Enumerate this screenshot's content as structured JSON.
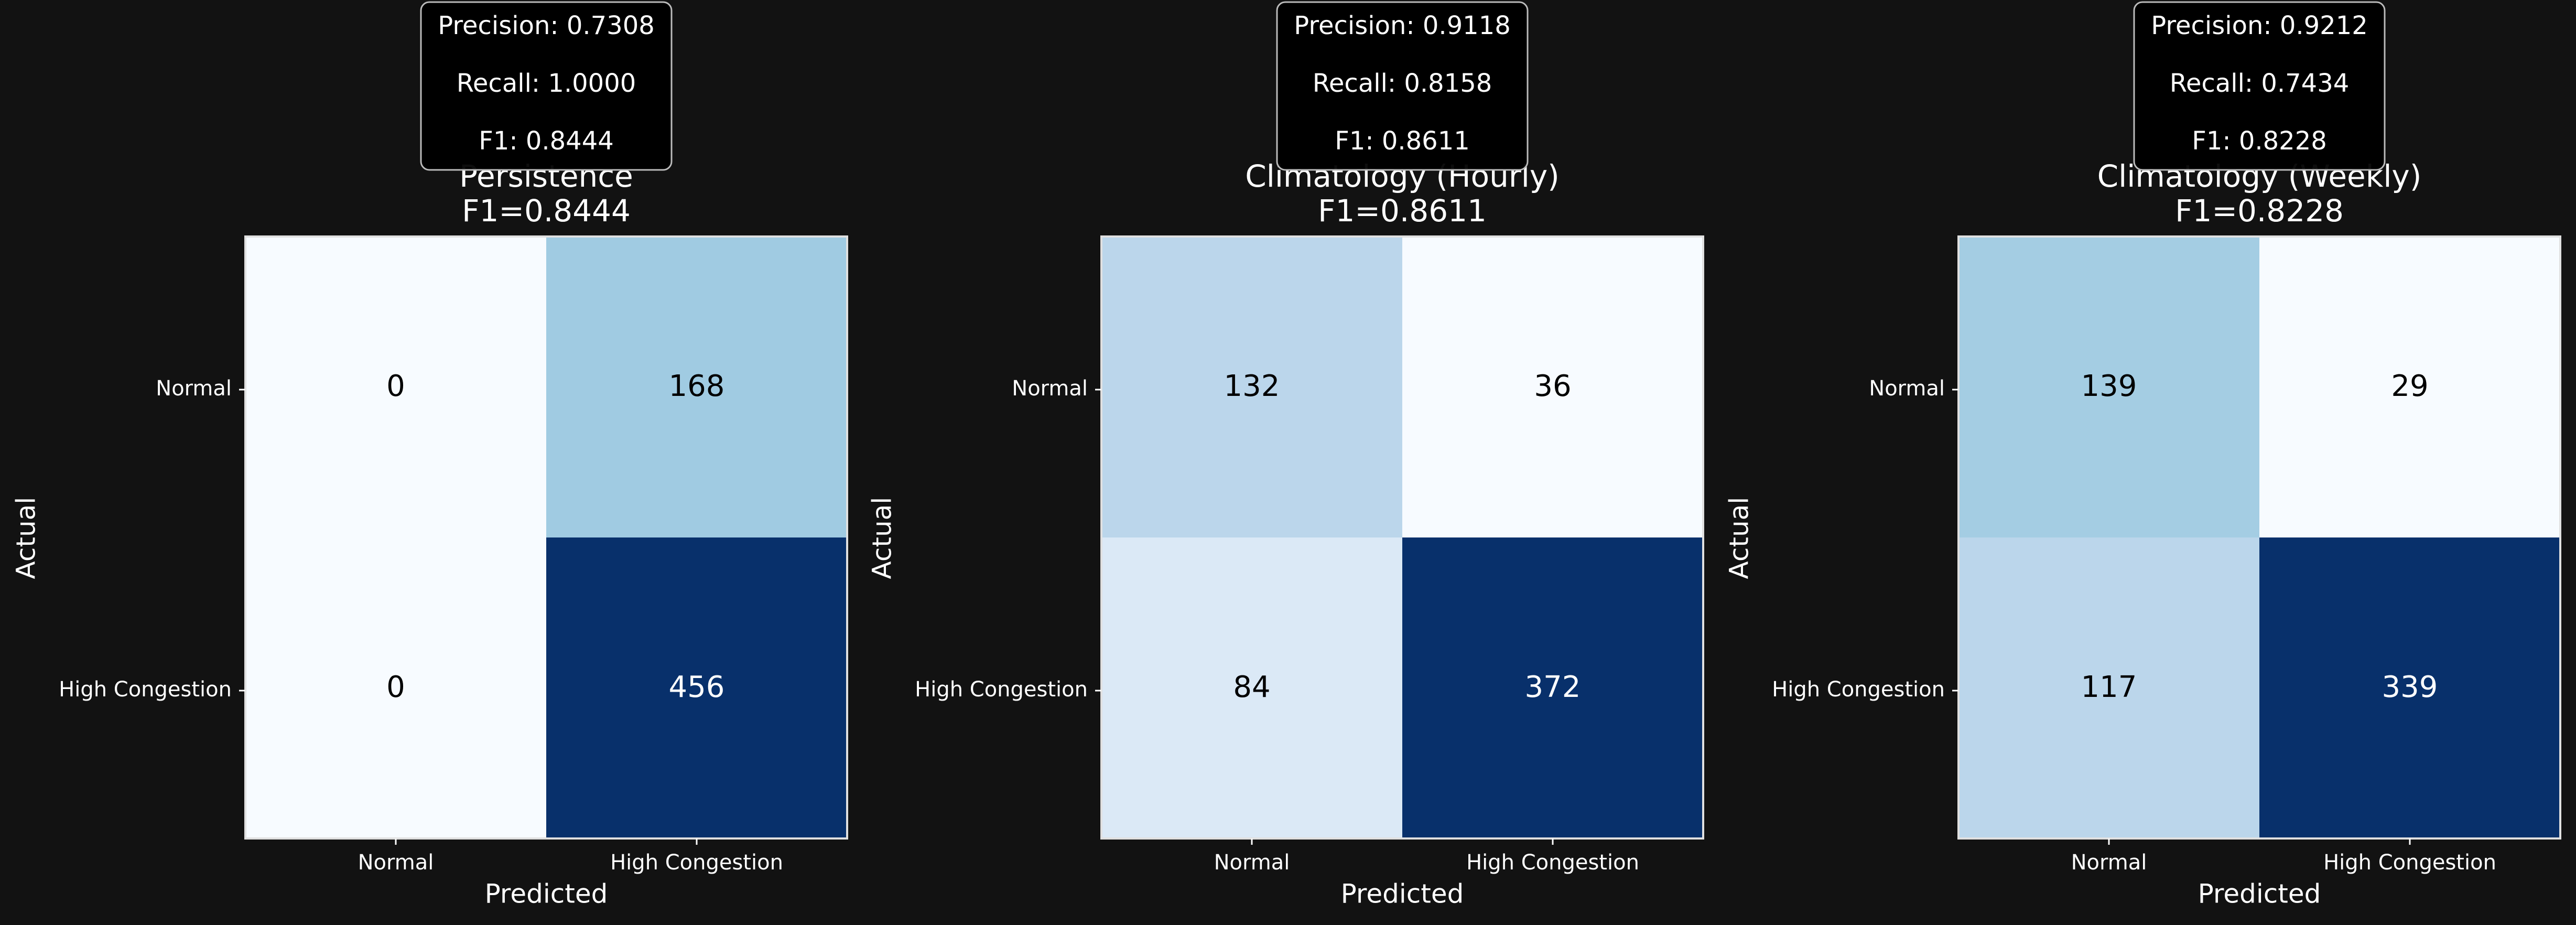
{
  "chart_data": [
    {
      "type": "heatmap",
      "title": "Persistence",
      "subtitle": "F1=0.8444",
      "xlabel": "Predicted",
      "ylabel": "Actual",
      "x_categories": [
        "Normal",
        "High Congestion"
      ],
      "y_categories": [
        "Normal",
        "High Congestion"
      ],
      "values": [
        [
          0,
          168
        ],
        [
          0,
          456
        ]
      ],
      "metrics": [
        "Precision: 0.7308",
        "Recall: 1.0000",
        "F1: 0.8444"
      ],
      "colormap": "Blues",
      "grid": false
    },
    {
      "type": "heatmap",
      "title": "Climatology (Hourly)",
      "subtitle": "F1=0.8611",
      "xlabel": "Predicted",
      "ylabel": "Actual",
      "x_categories": [
        "Normal",
        "High Congestion"
      ],
      "y_categories": [
        "Normal",
        "High Congestion"
      ],
      "values": [
        [
          132,
          36
        ],
        [
          84,
          372
        ]
      ],
      "metrics": [
        "Precision: 0.9118",
        "Recall: 0.8158",
        "F1: 0.8611"
      ],
      "colormap": "Blues",
      "grid": false
    },
    {
      "type": "heatmap",
      "title": "Climatology (Weekly)",
      "subtitle": "F1=0.8228",
      "xlabel": "Predicted",
      "ylabel": "Actual",
      "x_categories": [
        "Normal",
        "High Congestion"
      ],
      "y_categories": [
        "Normal",
        "High Congestion"
      ],
      "values": [
        [
          139,
          29
        ],
        [
          117,
          339
        ]
      ],
      "metrics": [
        "Precision: 0.9212",
        "Recall: 0.7434",
        "F1: 0.8228"
      ],
      "colormap": "Blues",
      "grid": false
    }
  ],
  "colors": {
    "background": "#121212",
    "text": "#ffffff",
    "metrics_box_fill": "#000000",
    "metrics_box_border": "#bbbbbb",
    "heatmap_low": "#f7fbff",
    "heatmap_high": "#08306b"
  }
}
